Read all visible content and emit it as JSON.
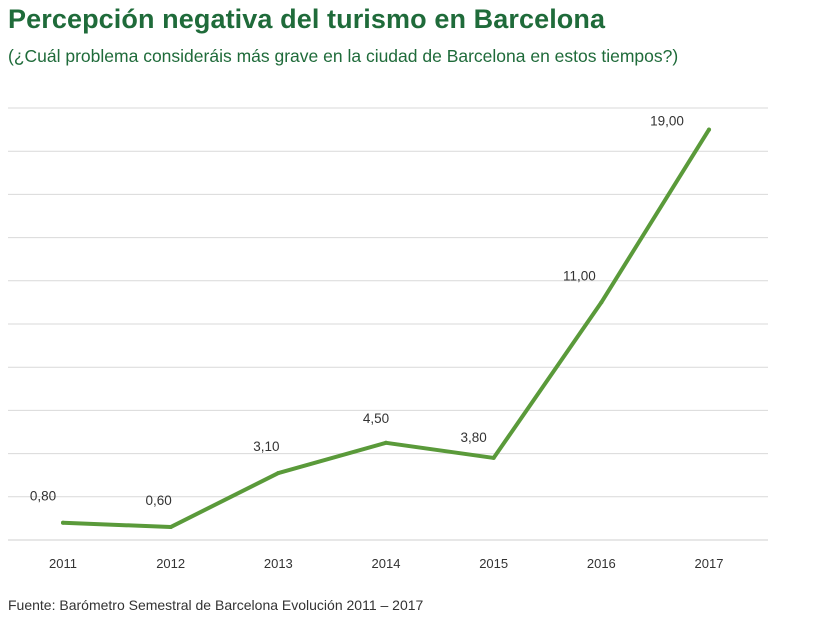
{
  "title": "Percepción negativa del turismo en Barcelona",
  "subtitle": "(¿Cuál problema consideráis más grave en la ciudad de Barcelona en estos tiempos?)",
  "source": "Fuente: Barómetro Semestral de Barcelona Evolución 2011 – 2017",
  "colors": {
    "title": "#1f6b3a",
    "line": "#5a9a3a",
    "grid": "#d9d9d9",
    "plot_background": "#ffffff"
  },
  "chart_data": {
    "type": "line",
    "title": "Percepción negativa del turismo en Barcelona",
    "subtitle": "(¿Cuál problema consideráis más grave en la ciudad de Barcelona en estos tiempos?)",
    "xlabel": "",
    "ylabel": "",
    "categories": [
      "2011",
      "2012",
      "2013",
      "2014",
      "2015",
      "2016",
      "2017"
    ],
    "series": [
      {
        "values": [
          0.8,
          0.6,
          3.1,
          4.5,
          3.8,
          11.0,
          19.0
        ],
        "data_labels": [
          "0,80",
          "0,60",
          "3,10",
          "4,50",
          "3,80",
          "11,00",
          "19,00"
        ]
      }
    ],
    "ylim": [
      0,
      20
    ],
    "grid": true,
    "legend": "none"
  }
}
